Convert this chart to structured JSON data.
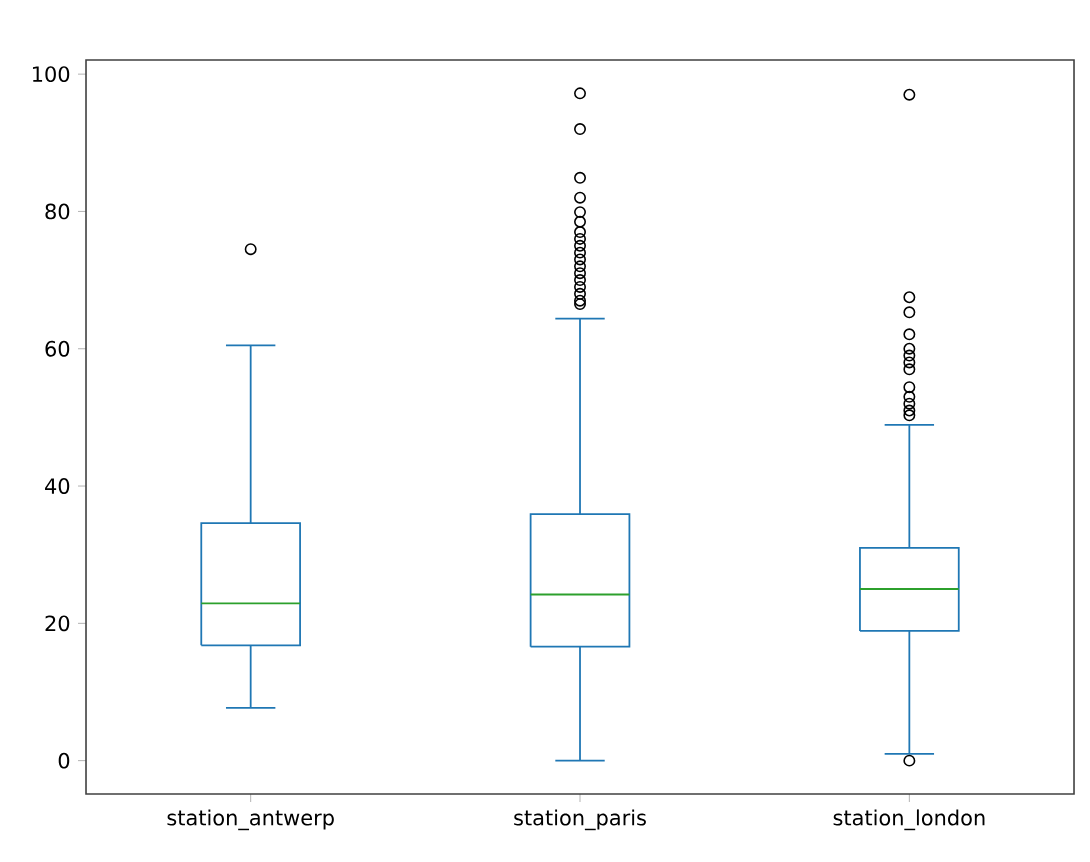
{
  "chart_data": {
    "type": "box",
    "categories": [
      "station_antwerp",
      "station_paris",
      "station_london"
    ],
    "color": "#1f77b4",
    "marker": "circle",
    "grid": false,
    "boxes": [
      {
        "low": 7.7,
        "q1": 16.8,
        "median": 22.9,
        "q3": 34.6,
        "high": 60.5,
        "outliers": [
          74.5
        ]
      },
      {
        "low": 0,
        "q1": 16.6,
        "median": 24.2,
        "q3": 35.9,
        "high": 64.4,
        "outliers": [
          97.2,
          92,
          84.9,
          82,
          79.9,
          78.5,
          77,
          76,
          75,
          74,
          73,
          72,
          71,
          70,
          69,
          68,
          67,
          66.5
        ]
      },
      {
        "low": 1,
        "q1": 18.9,
        "median": 25,
        "q3": 31,
        "high": 48.9,
        "outliers": [
          97,
          67.5,
          65.3,
          62.1,
          60,
          59,
          58,
          57,
          54.4,
          53,
          52,
          51,
          50.3,
          0
        ]
      }
    ],
    "ylim": [
      -4.86,
      102.06
    ],
    "yticks": [
      0,
      20,
      40,
      60,
      80,
      100
    ]
  }
}
